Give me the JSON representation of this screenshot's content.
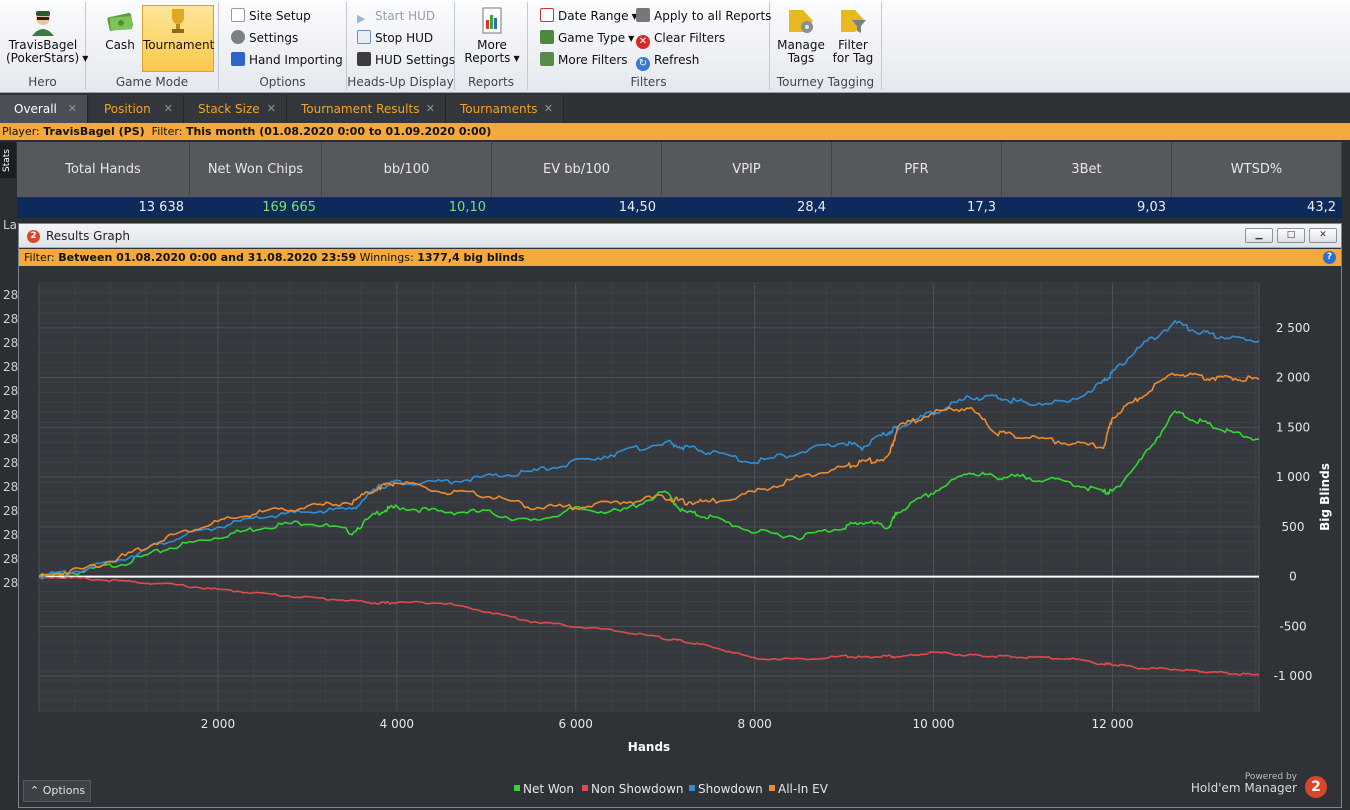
{
  "ribbon": {
    "hero": {
      "name": "TravisBagel",
      "site": "(PokerStars)",
      "group": "Hero"
    },
    "game_mode": {
      "cash": "Cash",
      "tournament": "Tournament",
      "group": "Game Mode"
    },
    "options": {
      "site_setup": "Site Setup",
      "settings": "Settings",
      "hand_importing": "Hand Importing",
      "group": "Options"
    },
    "hud": {
      "start_hud": "Start HUD",
      "stop_hud": "Stop HUD",
      "hud_settings": "HUD Settings",
      "group": "Heads-Up Display"
    },
    "reports": {
      "more_reports_1": "More",
      "more_reports_2": "Reports",
      "group": "Reports"
    },
    "filters": {
      "date_range": "Date Range",
      "game_type": "Game Type",
      "more_filters": "More Filters",
      "apply_all": "Apply to all Reports",
      "clear_filters": "Clear Filters",
      "refresh": "Refresh",
      "group": "Filters"
    },
    "tourney": {
      "manage_1": "Manage",
      "manage_2": "Tags",
      "filter_1": "Filter",
      "filter_2": "for Tag",
      "group": "Tourney Tagging"
    }
  },
  "tabs": [
    "Overall",
    "Position",
    "Stack Size",
    "Tournament Results",
    "Tournaments"
  ],
  "player_bar": {
    "player_label": "Player:",
    "player": "TravisBagel (PS)",
    "filter_label": "Filter:",
    "filter": "This month (01.08.2020 0:00 to 01.09.2020 0:00)"
  },
  "stats_side": "Stats",
  "stats": {
    "headers": [
      "Total Hands",
      "Net Won Chips",
      "bb/100",
      "EV bb/100",
      "VPIP",
      "PFR",
      "3Bet",
      "WTSD%"
    ],
    "values": [
      "13 638",
      "169 665",
      "10,10",
      "14,50",
      "28,4",
      "17,3",
      "9,03",
      "43,2"
    ]
  },
  "left_strip": [
    "La",
    "28",
    "28",
    "28",
    "28",
    "28",
    "28",
    "28",
    "28",
    "28",
    "28",
    "28",
    "28",
    "28"
  ],
  "graph_window": {
    "title": "Results Graph",
    "filter_label": "Filter:",
    "filter_text": "Between 01.08.2020 0:00 and 31.08.2020 23:59",
    "winnings_label": "Winnings:",
    "winnings": "1377,4 big blinds",
    "options": "Options",
    "powered_by": "Powered by",
    "brand": "Hold'em Manager",
    "logo_text": "2"
  },
  "chart_data": {
    "type": "line",
    "xlabel": "Hands",
    "ylabel": "Big Blinds",
    "xlim": [
      0,
      13638
    ],
    "ylim": [
      -1350,
      2950
    ],
    "x_ticks": [
      2000,
      4000,
      6000,
      8000,
      10000,
      12000
    ],
    "x_tick_labels": [
      "2 000",
      "4 000",
      "6 000",
      "8 000",
      "10 000",
      "12 000"
    ],
    "y_ticks": [
      2500,
      2000,
      1500,
      1000,
      500,
      0,
      -500,
      -1000
    ],
    "y_tick_labels": [
      "2 500",
      "2 000",
      "1 500",
      "1 000",
      "500",
      "0",
      "-500",
      "-1 000"
    ],
    "legend_position": "bottom",
    "x": [
      0,
      500,
      1000,
      1500,
      2000,
      2500,
      3000,
      3500,
      3800,
      4000,
      4500,
      5000,
      5500,
      6000,
      6500,
      7000,
      7200,
      7500,
      8000,
      8500,
      9000,
      9200,
      9500,
      9600,
      10000,
      10400,
      10700,
      11000,
      11500,
      11900,
      12000,
      12300,
      12700,
      13000,
      13300,
      13638
    ],
    "series": [
      {
        "name": "Net Won",
        "color": "#33d633",
        "values": [
          0,
          50,
          150,
          300,
          400,
          500,
          550,
          450,
          650,
          700,
          650,
          650,
          550,
          680,
          650,
          850,
          650,
          600,
          450,
          400,
          500,
          550,
          500,
          650,
          850,
          1050,
          1000,
          1000,
          950,
          850,
          850,
          1150,
          1650,
          1550,
          1450,
          1380
        ]
      },
      {
        "name": "Non Showdown",
        "color": "#e04a4a",
        "values": [
          0,
          -20,
          -50,
          -80,
          -130,
          -170,
          -210,
          -240,
          -270,
          -260,
          -260,
          -350,
          -450,
          -500,
          -550,
          -620,
          -650,
          -700,
          -820,
          -830,
          -800,
          -810,
          -800,
          -810,
          -760,
          -790,
          -800,
          -810,
          -820,
          -880,
          -880,
          -920,
          -930,
          -950,
          -970,
          -990
        ]
      },
      {
        "name": "Showdown",
        "color": "#2f8fd6",
        "values": [
          0,
          70,
          200,
          380,
          500,
          600,
          650,
          680,
          900,
          950,
          950,
          1000,
          1050,
          1150,
          1250,
          1350,
          1300,
          1250,
          1150,
          1250,
          1350,
          1300,
          1450,
          1500,
          1650,
          1800,
          1800,
          1750,
          1750,
          1950,
          2050,
          2300,
          2550,
          2450,
          2400,
          2370
        ]
      },
      {
        "name": "All-In EV",
        "color": "#f08a2e",
        "values": [
          0,
          80,
          220,
          420,
          550,
          650,
          700,
          750,
          900,
          950,
          850,
          820,
          700,
          700,
          750,
          800,
          750,
          750,
          850,
          1000,
          1100,
          1150,
          1200,
          1500,
          1650,
          1700,
          1450,
          1400,
          1350,
          1300,
          1600,
          1800,
          2050,
          2000,
          2000,
          1980
        ]
      }
    ]
  }
}
